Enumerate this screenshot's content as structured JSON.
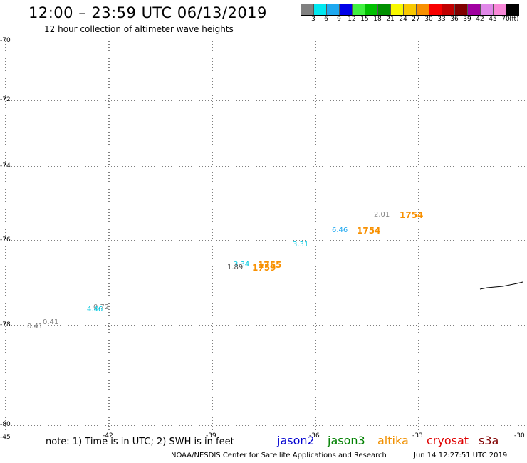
{
  "header": {
    "title": "12:00 – 23:59 UTC 06/13/2019",
    "subtitle": "12 hour collection of altimeter wave heights"
  },
  "legend": {
    "unit": "(ft)",
    "swatches": [
      {
        "color": "#808080",
        "label": "3"
      },
      {
        "color": "#00e8f0",
        "label": "6"
      },
      {
        "color": "#1ea8f0",
        "label": "9"
      },
      {
        "color": "#0000e8",
        "label": "12"
      },
      {
        "color": "#40f040",
        "label": "15"
      },
      {
        "color": "#00c000",
        "label": "18"
      },
      {
        "color": "#009000",
        "label": "21"
      },
      {
        "color": "#f8f800",
        "label": "24"
      },
      {
        "color": "#f8c800",
        "label": "27"
      },
      {
        "color": "#f89000",
        "label": "30"
      },
      {
        "color": "#f80000",
        "label": "33"
      },
      {
        "color": "#c00000",
        "label": "36"
      },
      {
        "color": "#800000",
        "label": "39"
      },
      {
        "color": "#a000a0",
        "label": "42"
      },
      {
        "color": "#e088e8",
        "label": "45"
      },
      {
        "color": "#f888d8",
        "label": "70"
      },
      {
        "color": "#000000",
        "label": ""
      }
    ]
  },
  "axes": {
    "lat_labels": [
      "-70",
      "-72",
      "-74",
      "-76",
      "-78",
      "-80"
    ],
    "lon_labels": [
      "-45",
      "-42",
      "-39",
      "-36",
      "-33",
      "-30"
    ]
  },
  "observations": {
    "wave_heights": [
      {
        "text": "2.01",
        "color": "#808080"
      },
      {
        "text": "6.46",
        "color": "#1ea8f0"
      },
      {
        "text": "3.31",
        "color": "#00c8e0"
      },
      {
        "text": "3.34",
        "color": "#00c8e0"
      },
      {
        "text": "1.89",
        "color": "#505050"
      },
      {
        "text": "0.72",
        "color": "#808080"
      },
      {
        "text": "4.46",
        "color": "#00c8e0"
      },
      {
        "text": "0.41",
        "color": "#808080"
      },
      {
        "text": "0.41",
        "color": "#808080"
      }
    ],
    "pass_times": [
      {
        "text": "1754",
        "color": "#f89000"
      },
      {
        "text": "1754",
        "color": "#f89000"
      },
      {
        "text": "1755",
        "color": "#f89000"
      },
      {
        "text": "1759",
        "color": "#f89000"
      }
    ]
  },
  "footer": {
    "note": "note: 1) Time is in UTC; 2) SWH is in feet",
    "satellites": [
      {
        "name": "jason2",
        "color": "#0000d0"
      },
      {
        "name": "jason3",
        "color": "#008000"
      },
      {
        "name": "altika",
        "color": "#f09000"
      },
      {
        "name": "cryosat",
        "color": "#e00000"
      },
      {
        "name": "s3a",
        "color": "#800000"
      }
    ],
    "credit": "NOAA/NESDIS Center for Satellite Applications and Research",
    "timestamp": "Jun 14 12:27:51 UTC 2019"
  }
}
